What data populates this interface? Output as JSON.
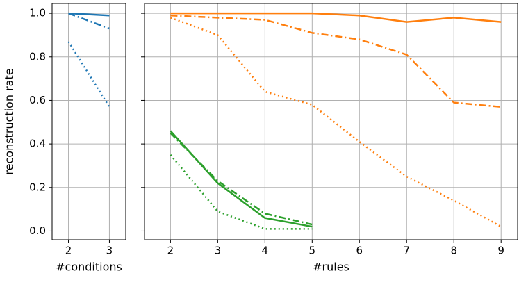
{
  "chart_data": [
    {
      "type": "line",
      "y_label": "reconstruction rate",
      "x_label": "#conditions",
      "x": [
        2,
        3
      ],
      "xlim": [
        1.6,
        3.4
      ],
      "xticks": [
        2,
        3
      ],
      "ylim": [
        -0.04,
        1.045
      ],
      "yticks": [
        {
          "value": 0,
          "label": "0.0"
        },
        {
          "value": 0.2,
          "label": "0.2"
        },
        {
          "value": 0.4,
          "label": "0.4"
        },
        {
          "value": 0.6,
          "label": "0.6"
        },
        {
          "value": 0.8,
          "label": "0.8"
        },
        {
          "value": 1,
          "label": "1.0"
        }
      ],
      "grid": true,
      "show_ytick_labels": true,
      "series": [
        {
          "color": "#1f77b4",
          "linestyle": "solid",
          "values": [
            1.0,
            0.99
          ]
        },
        {
          "color": "#1f77b4",
          "linestyle": "dashdot",
          "values": [
            1.0,
            0.93
          ]
        },
        {
          "color": "#1f77b4",
          "linestyle": "dotted",
          "values": [
            0.87,
            0.57
          ]
        }
      ]
    },
    {
      "type": "line",
      "x_label": "#rules",
      "x": [
        2,
        3,
        4,
        5,
        6,
        7,
        8,
        9
      ],
      "xlim": [
        1.45,
        9.35
      ],
      "xticks": [
        2,
        3,
        4,
        5,
        6,
        7,
        8,
        9
      ],
      "ylim": [
        -0.04,
        1.045
      ],
      "yticks": [
        0,
        0.2,
        0.4,
        0.6,
        0.8,
        1
      ],
      "grid": true,
      "show_ytick_labels": false,
      "series": [
        {
          "color": "#ff7f0e",
          "linestyle": "solid",
          "values": [
            1.0,
            1.0,
            1.0,
            1.0,
            0.99,
            0.96,
            0.98,
            0.96
          ]
        },
        {
          "color": "#ff7f0e",
          "linestyle": "dashdot",
          "values": [
            0.99,
            0.98,
            0.97,
            0.91,
            0.88,
            0.81,
            0.59,
            0.57
          ]
        },
        {
          "color": "#ff7f0e",
          "linestyle": "dotted",
          "values": [
            0.98,
            0.9,
            0.64,
            0.58,
            0.41,
            0.25,
            0.14,
            0.02
          ]
        },
        {
          "color": "#2ca02c",
          "linestyle": "solid",
          "values": [
            0.46,
            0.22,
            0.06,
            0.02,
            null,
            null,
            null,
            null
          ]
        },
        {
          "color": "#2ca02c",
          "linestyle": "dashdot",
          "values": [
            0.45,
            0.23,
            0.08,
            0.03,
            null,
            null,
            null,
            null
          ]
        },
        {
          "color": "#2ca02c",
          "linestyle": "dotted",
          "values": [
            0.35,
            0.09,
            0.01,
            0.01,
            null,
            null,
            null,
            null
          ]
        }
      ]
    }
  ]
}
